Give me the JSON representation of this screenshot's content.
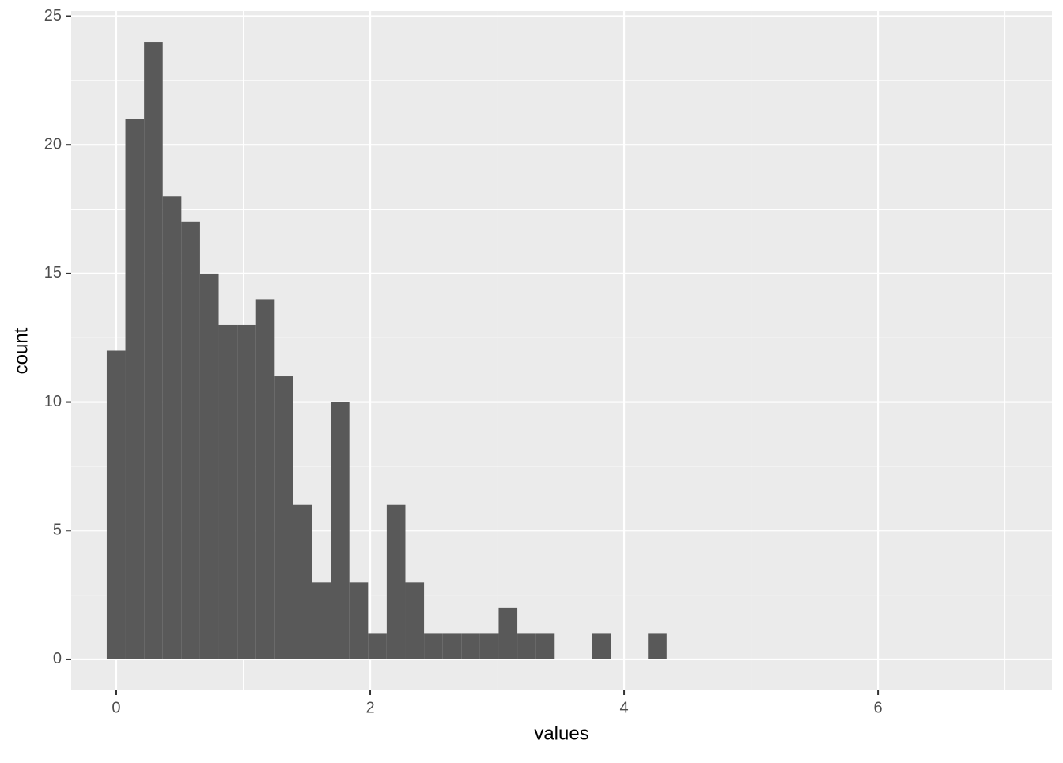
{
  "chart_data": {
    "type": "histogram",
    "x_label": "values",
    "y_label": "count",
    "bins": [
      -0.075,
      0.072,
      0.219,
      0.366,
      0.513,
      0.66,
      0.807,
      0.954,
      1.101,
      1.248,
      1.395,
      1.542,
      1.689,
      1.836,
      1.983,
      2.13,
      2.277,
      2.424,
      2.571,
      2.718,
      2.865,
      3.012,
      3.159,
      3.306,
      3.453,
      3.6,
      3.747,
      3.894,
      4.041,
      4.188,
      4.335
    ],
    "values": [
      12,
      21,
      24,
      18,
      17,
      15,
      13,
      13,
      14,
      11,
      6,
      3,
      10,
      3,
      1,
      6,
      3,
      1,
      1,
      1,
      1,
      2,
      1,
      1,
      0,
      0,
      1,
      0,
      0,
      1
    ],
    "color": "#595959",
    "xlim": [
      -0.355,
      7.37
    ],
    "xticks": [
      0,
      2,
      4,
      6
    ],
    "x_minor_breaks": [
      1,
      3,
      5,
      7
    ],
    "ylim": [
      -1.2,
      25.2
    ],
    "yticks": [
      0,
      5,
      10,
      15,
      20,
      25
    ],
    "y_minor_breaks": [
      2.5,
      7.5,
      12.5,
      17.5,
      22.5
    ],
    "grid": true
  }
}
